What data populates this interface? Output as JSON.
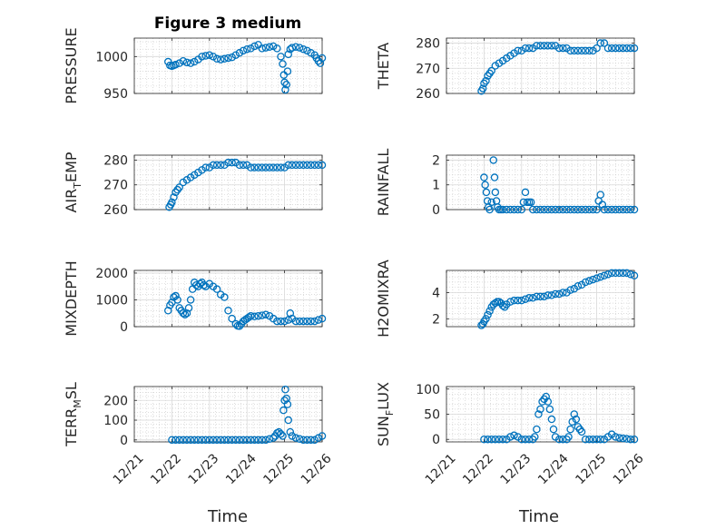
{
  "figure": {
    "title": "Figure 3 medium",
    "xlabel": "Time"
  },
  "colors": {
    "marker": "#0072BD",
    "axis": "#262626",
    "grid_major": "#d9d9d9",
    "grid_minor": "#c8c8c8"
  },
  "chart_data": [
    {
      "type": "scatter",
      "ylabel": "PRESSURE",
      "ylim": [
        950,
        1025
      ],
      "yticks": [
        950,
        1000
      ],
      "ytick_labels": [
        "950",
        "1000"
      ],
      "xlim": [
        0,
        5
      ],
      "series": [
        {
          "x": [
            0.9,
            0.95,
            1.0,
            1.05,
            1.1,
            1.2,
            1.3,
            1.4,
            1.5,
            1.6,
            1.7,
            1.8,
            1.9,
            2.0,
            2.1,
            2.2,
            2.3,
            2.4,
            2.5,
            2.6,
            2.7,
            2.8,
            2.9,
            3.0,
            3.1,
            3.2,
            3.3,
            3.4,
            3.5,
            3.6,
            3.7,
            3.8,
            3.9,
            3.95,
            3.98,
            4.0,
            4.02,
            4.05,
            4.08,
            4.1,
            4.15,
            4.2,
            4.3,
            4.4,
            4.5,
            4.6,
            4.7,
            4.8,
            4.85,
            4.9,
            4.95,
            5.0
          ],
          "y": [
            993,
            988,
            987,
            988,
            989,
            991,
            994,
            992,
            991,
            993,
            996,
            1000,
            1001,
            1002,
            1000,
            997,
            996,
            997,
            998,
            999,
            1002,
            1005,
            1008,
            1010,
            1011,
            1014,
            1016,
            1011,
            1012,
            1013,
            1014,
            1011,
            1000,
            990,
            975,
            965,
            955,
            962,
            980,
            1003,
            1010,
            1012,
            1013,
            1012,
            1010,
            1008,
            1005,
            1002,
            998,
            994,
            991,
            998
          ]
        }
      ]
    },
    {
      "type": "scatter",
      "ylabel": "THETA",
      "ylim": [
        260,
        282
      ],
      "yticks": [
        260,
        270,
        280
      ],
      "ytick_labels": [
        "260",
        "270",
        "280"
      ],
      "xlim": [
        0,
        5
      ],
      "series": [
        {
          "x": [
            0.93,
            0.97,
            1.0,
            1.05,
            1.1,
            1.15,
            1.2,
            1.3,
            1.4,
            1.5,
            1.6,
            1.7,
            1.8,
            1.9,
            2.0,
            2.1,
            2.2,
            2.3,
            2.4,
            2.5,
            2.6,
            2.7,
            2.8,
            2.9,
            3.0,
            3.1,
            3.2,
            3.3,
            3.4,
            3.5,
            3.6,
            3.7,
            3.8,
            3.9,
            4.0,
            4.1,
            4.2,
            4.3,
            4.4,
            4.5,
            4.6,
            4.7,
            4.8,
            4.9,
            5.0
          ],
          "y": [
            261,
            262,
            264,
            265,
            267,
            268,
            269,
            271,
            272,
            273,
            274,
            275,
            276,
            277,
            277,
            278,
            278,
            278,
            279,
            279,
            279,
            279,
            279,
            279,
            278,
            278,
            278,
            277,
            277,
            277,
            277,
            277,
            277,
            277,
            278,
            280,
            280,
            278,
            278,
            278,
            278,
            278,
            278,
            278,
            278
          ]
        }
      ]
    },
    {
      "type": "scatter",
      "ylabel": "AIR_TEMP",
      "ylim": [
        260,
        282
      ],
      "yticks": [
        260,
        270,
        280
      ],
      "ytick_labels": [
        "260",
        "270",
        "280"
      ],
      "xlim": [
        0,
        5
      ],
      "series": [
        {
          "x": [
            0.93,
            0.97,
            1.0,
            1.05,
            1.1,
            1.15,
            1.2,
            1.3,
            1.4,
            1.5,
            1.6,
            1.7,
            1.8,
            1.9,
            2.0,
            2.1,
            2.2,
            2.3,
            2.4,
            2.5,
            2.6,
            2.7,
            2.8,
            2.9,
            3.0,
            3.1,
            3.2,
            3.3,
            3.4,
            3.5,
            3.6,
            3.7,
            3.8,
            3.9,
            4.0,
            4.1,
            4.2,
            4.3,
            4.4,
            4.5,
            4.6,
            4.7,
            4.8,
            4.9,
            5.0
          ],
          "y": [
            261,
            262,
            263,
            265,
            267,
            268,
            269,
            271,
            272,
            273,
            274,
            275,
            276,
            277,
            277,
            278,
            278,
            278,
            278,
            279,
            279,
            279,
            278,
            278,
            278,
            277,
            277,
            277,
            277,
            277,
            277,
            277,
            277,
            277,
            277,
            278,
            278,
            278,
            278,
            278,
            278,
            278,
            278,
            278,
            278
          ]
        }
      ]
    },
    {
      "type": "scatter",
      "ylabel": "RAINFALL",
      "ylim": [
        0,
        2.2
      ],
      "yticks": [
        0,
        1,
        2
      ],
      "ytick_labels": [
        "0",
        "1",
        "2"
      ],
      "xlim": [
        0,
        5
      ],
      "series": [
        {
          "x": [
            1.0,
            1.03,
            1.06,
            1.09,
            1.12,
            1.15,
            1.2,
            1.25,
            1.28,
            1.3,
            1.33,
            1.36,
            1.4,
            1.45,
            1.5,
            1.6,
            1.7,
            1.8,
            1.9,
            2.0,
            2.05,
            2.1,
            2.15,
            2.2,
            2.25,
            2.3,
            2.4,
            2.5,
            2.6,
            2.7,
            2.8,
            2.9,
            3.0,
            3.1,
            3.2,
            3.3,
            3.4,
            3.5,
            3.6,
            3.7,
            3.8,
            3.9,
            4.0,
            4.05,
            4.1,
            4.15,
            4.2,
            4.3,
            4.4,
            4.5,
            4.6,
            4.7,
            4.8,
            4.9,
            5.0
          ],
          "y": [
            1.3,
            1.0,
            0.7,
            0.35,
            0.1,
            0.0,
            0.3,
            2.0,
            1.3,
            0.7,
            0.35,
            0.1,
            0.0,
            0.0,
            0.0,
            0.0,
            0.0,
            0.0,
            0.0,
            0.0,
            0.3,
            0.7,
            0.3,
            0.3,
            0.3,
            0.0,
            0.0,
            0.0,
            0.0,
            0.0,
            0.0,
            0.0,
            0.0,
            0.0,
            0.0,
            0.0,
            0.0,
            0.0,
            0.0,
            0.0,
            0.0,
            0.0,
            0.0,
            0.35,
            0.6,
            0.2,
            0.0,
            0.0,
            0.0,
            0.0,
            0.0,
            0.0,
            0.0,
            0.0,
            0.0
          ]
        }
      ]
    },
    {
      "type": "scatter",
      "ylabel": "MIXDEPTH",
      "ylim": [
        0,
        2100
      ],
      "yticks": [
        0,
        1000,
        2000
      ],
      "ytick_labels": [
        "0",
        "1000",
        "2000"
      ],
      "xlim": [
        0,
        5
      ],
      "series": [
        {
          "x": [
            0.9,
            0.95,
            1.0,
            1.05,
            1.1,
            1.15,
            1.2,
            1.25,
            1.3,
            1.35,
            1.4,
            1.45,
            1.5,
            1.55,
            1.6,
            1.65,
            1.7,
            1.75,
            1.8,
            1.85,
            1.9,
            2.0,
            2.1,
            2.2,
            2.3,
            2.4,
            2.5,
            2.6,
            2.7,
            2.75,
            2.8,
            2.85,
            2.9,
            2.95,
            3.0,
            3.05,
            3.1,
            3.2,
            3.3,
            3.4,
            3.5,
            3.6,
            3.7,
            3.8,
            3.9,
            4.0,
            4.1,
            4.15,
            4.2,
            4.3,
            4.4,
            4.5,
            4.6,
            4.7,
            4.8,
            4.9,
            5.0
          ],
          "y": [
            600,
            800,
            900,
            1100,
            1150,
            1000,
            700,
            600,
            500,
            450,
            500,
            700,
            1000,
            1400,
            1650,
            1550,
            1500,
            1600,
            1650,
            1550,
            1500,
            1600,
            1500,
            1400,
            1200,
            1100,
            600,
            300,
            100,
            30,
            20,
            100,
            200,
            250,
            300,
            350,
            400,
            380,
            400,
            420,
            450,
            400,
            300,
            200,
            200,
            200,
            250,
            500,
            300,
            200,
            200,
            200,
            200,
            200,
            200,
            250,
            300
          ]
        }
      ]
    },
    {
      "type": "scatter",
      "ylabel": "H2OMIXRA",
      "ylim": [
        1.4,
        5.7
      ],
      "yticks": [
        2,
        4
      ],
      "ytick_labels": [
        "2",
        "4"
      ],
      "xlim": [
        0,
        5
      ],
      "series": [
        {
          "x": [
            0.93,
            0.97,
            1.0,
            1.05,
            1.1,
            1.15,
            1.2,
            1.25,
            1.3,
            1.35,
            1.4,
            1.45,
            1.5,
            1.55,
            1.6,
            1.7,
            1.8,
            1.9,
            2.0,
            2.1,
            2.2,
            2.3,
            2.4,
            2.5,
            2.6,
            2.7,
            2.8,
            2.9,
            3.0,
            3.1,
            3.2,
            3.3,
            3.4,
            3.5,
            3.6,
            3.7,
            3.8,
            3.9,
            4.0,
            4.1,
            4.2,
            4.3,
            4.4,
            4.5,
            4.6,
            4.7,
            4.8,
            4.9,
            5.0
          ],
          "y": [
            1.5,
            1.6,
            1.8,
            2.0,
            2.3,
            2.6,
            2.9,
            3.1,
            3.2,
            3.3,
            3.3,
            3.2,
            3.0,
            2.9,
            3.1,
            3.3,
            3.4,
            3.4,
            3.4,
            3.5,
            3.6,
            3.6,
            3.7,
            3.7,
            3.7,
            3.8,
            3.8,
            3.9,
            3.9,
            4.0,
            4.0,
            4.2,
            4.3,
            4.5,
            4.6,
            4.8,
            4.9,
            5.0,
            5.1,
            5.2,
            5.3,
            5.4,
            5.5,
            5.5,
            5.5,
            5.5,
            5.5,
            5.4,
            5.3
          ]
        }
      ]
    },
    {
      "type": "scatter",
      "ylabel": "TERR_MSL",
      "ylim": [
        -10,
        270
      ],
      "yticks": [
        0,
        100,
        200
      ],
      "ytick_labels": [
        "0",
        "100",
        "200"
      ],
      "xlim": [
        0,
        5
      ],
      "series": [
        {
          "x": [
            1.0,
            1.1,
            1.2,
            1.3,
            1.4,
            1.5,
            1.6,
            1.7,
            1.8,
            1.9,
            2.0,
            2.1,
            2.2,
            2.3,
            2.4,
            2.5,
            2.6,
            2.7,
            2.8,
            2.9,
            3.0,
            3.1,
            3.2,
            3.3,
            3.4,
            3.5,
            3.6,
            3.7,
            3.75,
            3.8,
            3.85,
            3.9,
            3.95,
            3.97,
            4.0,
            4.02,
            4.05,
            4.08,
            4.1,
            4.15,
            4.2,
            4.3,
            4.4,
            4.5,
            4.6,
            4.7,
            4.8,
            4.9,
            5.0
          ],
          "y": [
            0,
            0,
            0,
            0,
            0,
            0,
            0,
            0,
            0,
            0,
            0,
            0,
            0,
            0,
            0,
            0,
            0,
            0,
            0,
            0,
            0,
            0,
            0,
            0,
            0,
            0,
            5,
            10,
            20,
            35,
            40,
            30,
            20,
            150,
            200,
            255,
            210,
            180,
            100,
            40,
            20,
            10,
            5,
            0,
            0,
            0,
            0,
            10,
            20
          ]
        }
      ]
    },
    {
      "type": "scatter",
      "ylabel": "SUN_FLUX",
      "ylim": [
        -5,
        105
      ],
      "yticks": [
        0,
        50,
        100
      ],
      "ytick_labels": [
        "0",
        "50",
        "100"
      ],
      "xlim": [
        0,
        5
      ],
      "series": [
        {
          "x": [
            1.0,
            1.1,
            1.2,
            1.3,
            1.4,
            1.5,
            1.6,
            1.7,
            1.8,
            1.9,
            2.0,
            2.1,
            2.2,
            2.3,
            2.35,
            2.4,
            2.45,
            2.5,
            2.55,
            2.6,
            2.65,
            2.7,
            2.75,
            2.8,
            2.85,
            2.9,
            3.0,
            3.1,
            3.2,
            3.25,
            3.3,
            3.35,
            3.4,
            3.45,
            3.5,
            3.55,
            3.6,
            3.7,
            3.8,
            3.9,
            4.0,
            4.1,
            4.2,
            4.3,
            4.4,
            4.5,
            4.6,
            4.7,
            4.8,
            4.9,
            5.0
          ],
          "y": [
            0,
            0,
            0,
            0,
            0,
            0,
            0,
            5,
            8,
            5,
            0,
            0,
            0,
            0,
            5,
            20,
            50,
            60,
            75,
            80,
            85,
            75,
            60,
            40,
            20,
            5,
            0,
            0,
            0,
            5,
            20,
            35,
            50,
            40,
            25,
            20,
            15,
            0,
            0,
            0,
            0,
            0,
            0,
            5,
            10,
            5,
            3,
            2,
            1,
            0,
            0
          ]
        }
      ]
    }
  ],
  "x_tick_labels": [
    "12/21",
    "12/22",
    "12/23",
    "12/24",
    "12/25",
    "12/26"
  ]
}
